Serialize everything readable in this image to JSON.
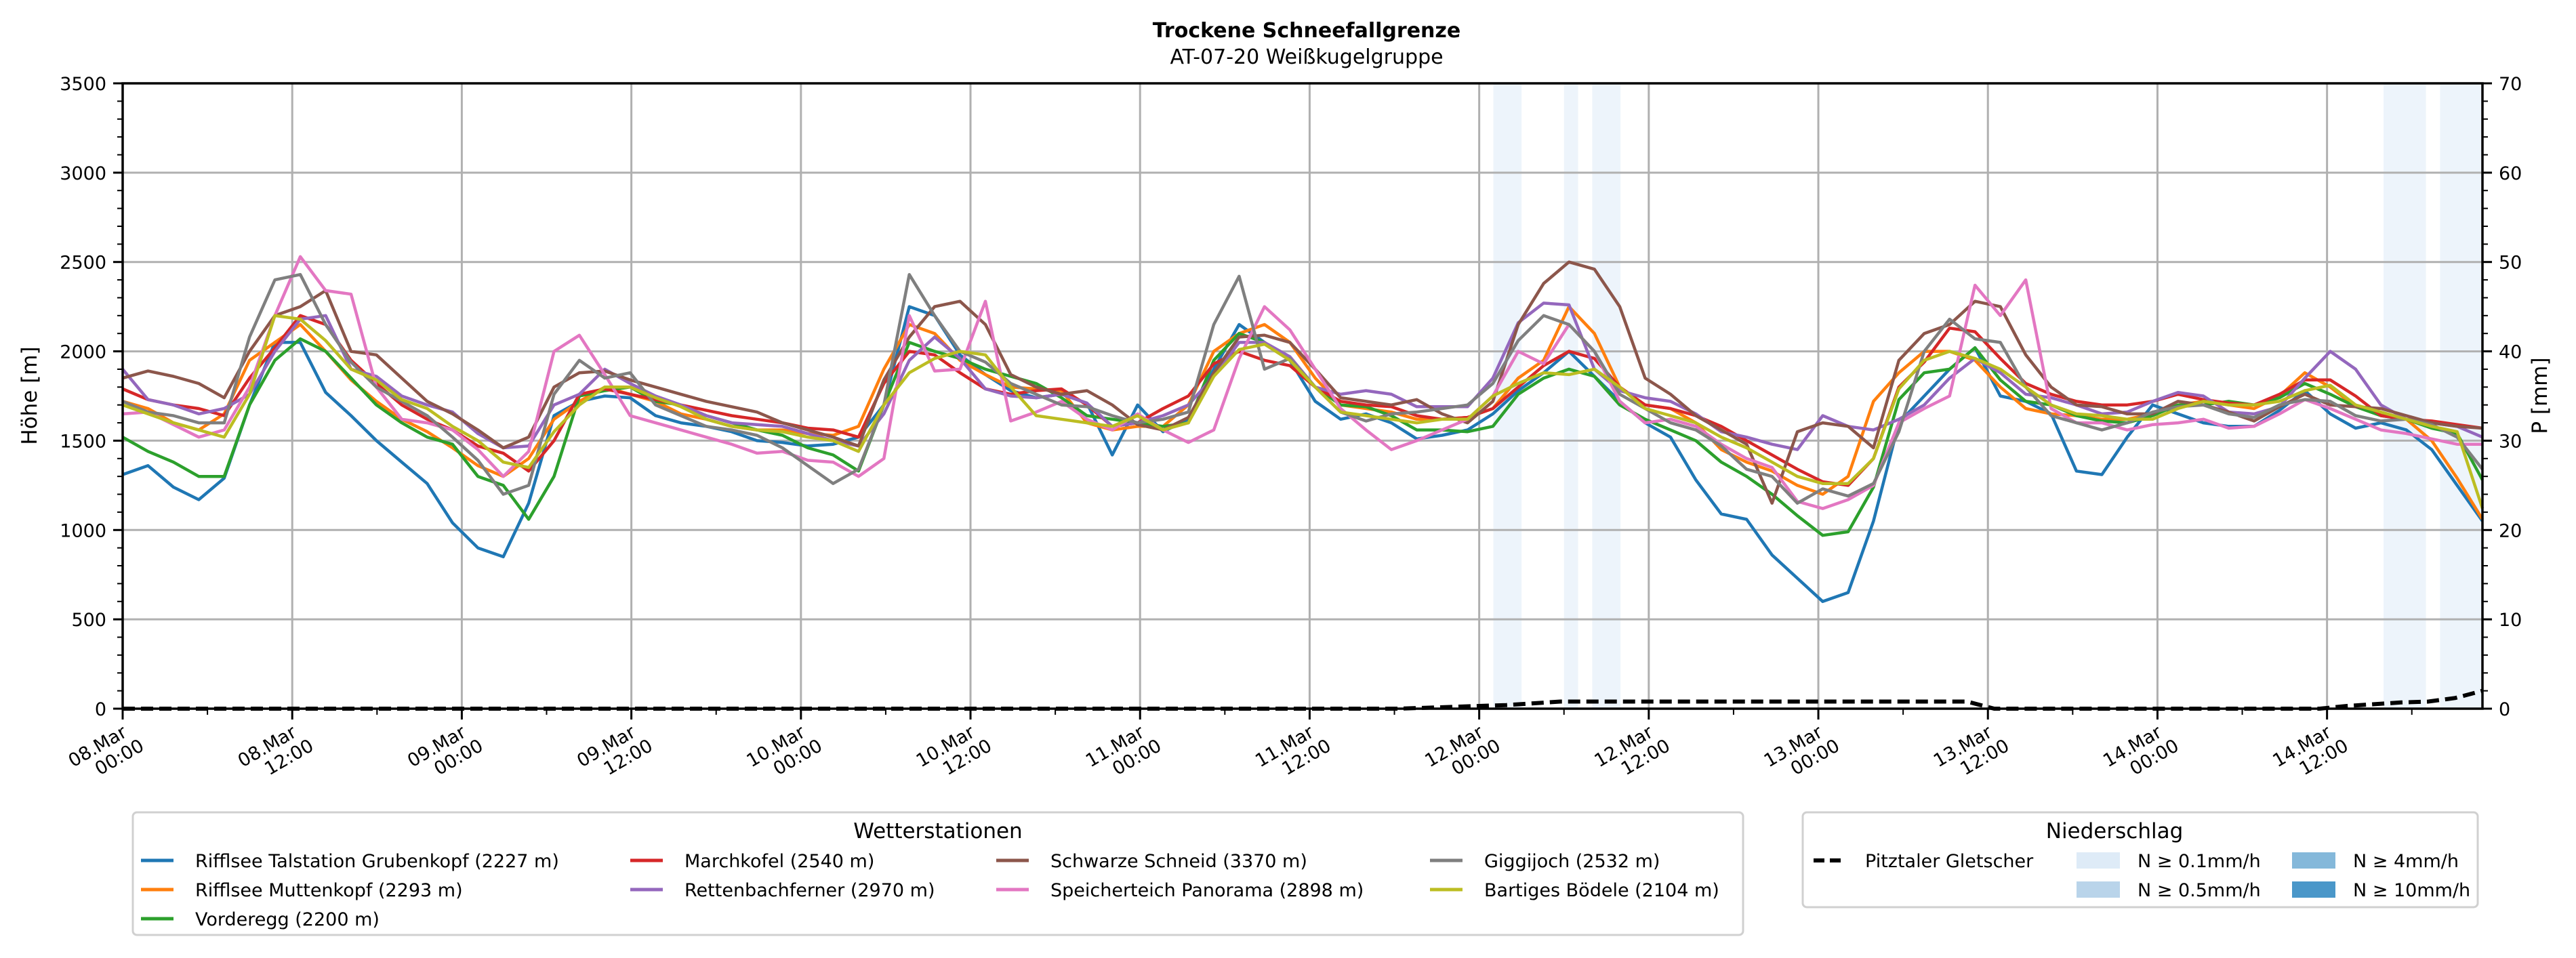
{
  "chart_data": {
    "type": "line",
    "title": "Trockene Schneefallgrenze",
    "subtitle": "AT-07-20 Weißkugelgruppe",
    "ylabel": "Höhe [m]",
    "y2label": "P [mm]",
    "ylim": [
      0,
      3500
    ],
    "y2lim": [
      0,
      70
    ],
    "yticks": [
      0,
      500,
      1000,
      1500,
      2000,
      2500,
      3000,
      3500
    ],
    "y2ticks": [
      0,
      10,
      20,
      30,
      40,
      50,
      60,
      70
    ],
    "grid": true,
    "x_start": "08.Mar 00:00",
    "x_step_hours": 2,
    "x_range_hours": [
      0,
      167
    ],
    "xticks": [
      {
        "hour": 0,
        "line1": "08.Mar",
        "line2": "00:00"
      },
      {
        "hour": 12,
        "line1": "08.Mar",
        "line2": "12:00"
      },
      {
        "hour": 24,
        "line1": "09.Mar",
        "line2": "00:00"
      },
      {
        "hour": 36,
        "line1": "09.Mar",
        "line2": "12:00"
      },
      {
        "hour": 48,
        "line1": "10.Mar",
        "line2": "00:00"
      },
      {
        "hour": 60,
        "line1": "10.Mar",
        "line2": "12:00"
      },
      {
        "hour": 72,
        "line1": "11.Mar",
        "line2": "00:00"
      },
      {
        "hour": 84,
        "line1": "11.Mar",
        "line2": "12:00"
      },
      {
        "hour": 96,
        "line1": "12.Mar",
        "line2": "00:00"
      },
      {
        "hour": 108,
        "line1": "12.Mar",
        "line2": "12:00"
      },
      {
        "hour": 120,
        "line1": "13.Mar",
        "line2": "00:00"
      },
      {
        "hour": 132,
        "line1": "13.Mar",
        "line2": "12:00"
      },
      {
        "hour": 144,
        "line1": "14.Mar",
        "line2": "00:00"
      },
      {
        "hour": 156,
        "line1": "14.Mar",
        "line2": "12:00"
      }
    ],
    "precip_bands": [
      {
        "from_hour": 97,
        "to_hour": 99,
        "class": "N ≥ 0.1mm/h"
      },
      {
        "from_hour": 102,
        "to_hour": 103,
        "class": "N ≥ 0.1mm/h"
      },
      {
        "from_hour": 104,
        "to_hour": 106,
        "class": "N ≥ 0.1mm/h"
      },
      {
        "from_hour": 160,
        "to_hour": 163,
        "class": "N ≥ 0.1mm/h"
      },
      {
        "from_hour": 164,
        "to_hour": 167,
        "class": "N ≥ 0.1mm/h"
      }
    ],
    "series": [
      {
        "name": "Rifflsee Talstation Grubenkopf (2227 m)",
        "color": "#1f77b4",
        "values": [
          1310,
          1360,
          1240,
          1170,
          1290,
          1700,
          2050,
          2050,
          1770,
          1640,
          1500,
          1380,
          1260,
          1040,
          900,
          850,
          1150,
          1640,
          1720,
          1750,
          1740,
          1640,
          1600,
          1580,
          1550,
          1500,
          1490,
          1470,
          1480,
          1520,
          1700,
          2250,
          2200,
          1980,
          1870,
          1780,
          1740,
          1760,
          1710,
          1420,
          1700,
          1550,
          1620,
          1900,
          2150,
          2050,
          1950,
          1720,
          1620,
          1650,
          1600,
          1510,
          1530,
          1560,
          1650,
          1780,
          1880,
          2000,
          1860,
          1720,
          1600,
          1520,
          1280,
          1090,
          1060,
          860,
          730,
          600,
          650,
          1050,
          1600,
          1750,
          1900,
          2020,
          1750,
          1720,
          1650,
          1330,
          1310,
          1520,
          1700,
          1650,
          1600,
          1580,
          1580,
          1670,
          1780,
          1650,
          1570,
          1600,
          1560,
          1450,
          1250,
          1050
        ]
      },
      {
        "name": "Rifflsee Muttenkopf (2293 m)",
        "color": "#ff7f0e",
        "values": [
          1720,
          1680,
          1600,
          1560,
          1650,
          1950,
          2050,
          2150,
          2000,
          1840,
          1720,
          1620,
          1550,
          1460,
          1360,
          1300,
          1400,
          1620,
          1720,
          1800,
          1760,
          1720,
          1650,
          1620,
          1580,
          1560,
          1560,
          1540,
          1530,
          1580,
          1900,
          2150,
          2100,
          1950,
          1870,
          1800,
          1790,
          1780,
          1600,
          1560,
          1580,
          1580,
          1700,
          2000,
          2100,
          2150,
          2050,
          1850,
          1700,
          1680,
          1660,
          1620,
          1620,
          1630,
          1680,
          1850,
          1950,
          2250,
          2100,
          1800,
          1700,
          1680,
          1600,
          1450,
          1380,
          1330,
          1250,
          1200,
          1300,
          1720,
          1880,
          2000,
          2000,
          1950,
          1800,
          1680,
          1650,
          1640,
          1620,
          1620,
          1650,
          1700,
          1720,
          1700,
          1680,
          1750,
          1880,
          1800,
          1690,
          1650,
          1620,
          1500,
          1290,
          1060
        ]
      },
      {
        "name": "Vorderegg (2200 m)",
        "color": "#2ca02c",
        "values": [
          1520,
          1440,
          1380,
          1300,
          1300,
          1700,
          1950,
          2070,
          2000,
          1850,
          1700,
          1600,
          1520,
          1480,
          1300,
          1250,
          1060,
          1300,
          1750,
          1780,
          1800,
          1720,
          1700,
          1640,
          1600,
          1560,
          1530,
          1460,
          1420,
          1330,
          1700,
          2050,
          2000,
          1960,
          1900,
          1860,
          1820,
          1740,
          1640,
          1620,
          1600,
          1580,
          1600,
          1950,
          2100,
          2050,
          1950,
          1800,
          1700,
          1690,
          1640,
          1560,
          1560,
          1550,
          1580,
          1760,
          1850,
          1900,
          1860,
          1700,
          1620,
          1560,
          1500,
          1380,
          1300,
          1200,
          1080,
          970,
          990,
          1240,
          1730,
          1880,
          1900,
          2020,
          1840,
          1720,
          1700,
          1640,
          1610,
          1600,
          1640,
          1700,
          1700,
          1720,
          1700,
          1740,
          1820,
          1760,
          1690,
          1640,
          1620,
          1570,
          1540,
          1280
        ]
      },
      {
        "name": "Marchkofel (2540 m)",
        "color": "#d62728",
        "values": [
          1790,
          1730,
          1700,
          1680,
          1640,
          1850,
          2020,
          2200,
          2150,
          1950,
          1820,
          1700,
          1620,
          1560,
          1470,
          1430,
          1330,
          1500,
          1760,
          1790,
          1760,
          1730,
          1700,
          1670,
          1640,
          1620,
          1600,
          1570,
          1560,
          1520,
          1820,
          2000,
          1980,
          1880,
          1790,
          1760,
          1780,
          1790,
          1700,
          1580,
          1600,
          1680,
          1750,
          1930,
          2000,
          1950,
          1920,
          1800,
          1720,
          1700,
          1690,
          1640,
          1620,
          1630,
          1680,
          1800,
          1920,
          2000,
          1960,
          1800,
          1700,
          1680,
          1640,
          1580,
          1500,
          1420,
          1340,
          1270,
          1250,
          1400,
          1800,
          1940,
          2130,
          2110,
          1960,
          1820,
          1760,
          1720,
          1700,
          1700,
          1720,
          1760,
          1730,
          1710,
          1700,
          1760,
          1840,
          1840,
          1750,
          1640,
          1620,
          1610,
          1590,
          1570
        ]
      },
      {
        "name": "Rettenbachferner (2970 m)",
        "color": "#9467bd",
        "values": [
          1900,
          1730,
          1700,
          1650,
          1680,
          1760,
          2000,
          2180,
          2200,
          1900,
          1860,
          1750,
          1700,
          1660,
          1540,
          1460,
          1470,
          1700,
          1760,
          1900,
          1820,
          1750,
          1700,
          1640,
          1600,
          1590,
          1580,
          1540,
          1500,
          1470,
          1650,
          1950,
          2080,
          1960,
          1790,
          1750,
          1740,
          1760,
          1710,
          1580,
          1600,
          1640,
          1700,
          1860,
          2050,
          2050,
          1970,
          1800,
          1760,
          1780,
          1760,
          1690,
          1690,
          1690,
          1850,
          2160,
          2270,
          2260,
          1900,
          1780,
          1740,
          1720,
          1650,
          1550,
          1520,
          1480,
          1450,
          1640,
          1580,
          1560,
          1620,
          1700,
          1850,
          1960,
          1880,
          1760,
          1740,
          1700,
          1650,
          1660,
          1720,
          1770,
          1750,
          1660,
          1650,
          1690,
          1850,
          2000,
          1900,
          1700,
          1620,
          1600,
          1580,
          1520
        ]
      },
      {
        "name": "Schwarze Schneid (3370 m)",
        "color": "#8c564b",
        "values": [
          1850,
          1890,
          1860,
          1820,
          1740,
          2000,
          2200,
          2250,
          2340,
          2000,
          1980,
          1850,
          1720,
          1650,
          1560,
          1460,
          1520,
          1800,
          1880,
          1890,
          1840,
          1800,
          1760,
          1720,
          1690,
          1660,
          1600,
          1560,
          1520,
          1470,
          1840,
          2080,
          2250,
          2280,
          2150,
          1870,
          1800,
          1760,
          1780,
          1700,
          1590,
          1560,
          1630,
          1880,
          2080,
          2090,
          2050,
          1900,
          1740,
          1720,
          1700,
          1730,
          1650,
          1600,
          1720,
          2150,
          2380,
          2500,
          2460,
          2250,
          1850,
          1760,
          1640,
          1560,
          1480,
          1150,
          1550,
          1600,
          1580,
          1460,
          1950,
          2100,
          2150,
          2280,
          2250,
          1980,
          1800,
          1700,
          1690,
          1650,
          1650,
          1720,
          1700,
          1660,
          1610,
          1690,
          1760,
          1700,
          1690,
          1680,
          1640,
          1600,
          1580,
          1570
        ]
      },
      {
        "name": "Speicherteich Panorama (2898 m)",
        "color": "#e377c2",
        "values": [
          1650,
          1660,
          1590,
          1520,
          1560,
          1800,
          2200,
          2530,
          2340,
          2320,
          1800,
          1620,
          1600,
          1560,
          1450,
          1300,
          1440,
          2000,
          2090,
          1870,
          1640,
          1600,
          1560,
          1520,
          1480,
          1430,
          1440,
          1390,
          1380,
          1300,
          1400,
          2200,
          1890,
          1900,
          2280,
          1610,
          1660,
          1720,
          1620,
          1560,
          1650,
          1560,
          1490,
          1560,
          1960,
          2250,
          2120,
          1900,
          1680,
          1560,
          1450,
          1500,
          1560,
          1620,
          1750,
          2000,
          1930,
          2150,
          2000,
          1720,
          1600,
          1620,
          1580,
          1480,
          1400,
          1350,
          1160,
          1120,
          1170,
          1250,
          1600,
          1680,
          1750,
          2370,
          2200,
          2400,
          1680,
          1600,
          1600,
          1560,
          1590,
          1600,
          1620,
          1570,
          1580,
          1650,
          1730,
          1680,
          1620,
          1560,
          1540,
          1510,
          1480,
          1480
        ]
      },
      {
        "name": "Giggijoch (2532 m)",
        "color": "#7f7f7f",
        "values": [
          1720,
          1660,
          1640,
          1600,
          1600,
          2080,
          2400,
          2430,
          2150,
          1940,
          1800,
          1720,
          1640,
          1520,
          1390,
          1200,
          1250,
          1760,
          1950,
          1850,
          1880,
          1700,
          1640,
          1580,
          1560,
          1530,
          1460,
          1360,
          1260,
          1340,
          1700,
          2430,
          2200,
          2000,
          1940,
          1820,
          1760,
          1700,
          1690,
          1640,
          1600,
          1620,
          1660,
          2150,
          2420,
          1900,
          1960,
          1800,
          1660,
          1610,
          1650,
          1660,
          1680,
          1700,
          1820,
          2060,
          2200,
          2150,
          2000,
          1760,
          1680,
          1600,
          1560,
          1470,
          1340,
          1300,
          1150,
          1230,
          1190,
          1260,
          1550,
          2000,
          2180,
          2070,
          2050,
          1800,
          1640,
          1600,
          1560,
          1600,
          1660,
          1690,
          1700,
          1650,
          1630,
          1700,
          1730,
          1720,
          1640,
          1610,
          1620,
          1590,
          1520,
          1340
        ]
      },
      {
        "name": "Bartiges Bödele (2104 m)",
        "color": "#bcbd22",
        "values": [
          1700,
          1650,
          1600,
          1560,
          1520,
          1760,
          2200,
          2180,
          2060,
          1900,
          1840,
          1730,
          1680,
          1580,
          1500,
          1380,
          1350,
          1550,
          1700,
          1800,
          1800,
          1740,
          1690,
          1620,
          1580,
          1560,
          1550,
          1520,
          1500,
          1440,
          1700,
          1880,
          1960,
          2000,
          1980,
          1800,
          1640,
          1620,
          1600,
          1580,
          1640,
          1560,
          1600,
          1860,
          2010,
          2040,
          1950,
          1800,
          1660,
          1640,
          1620,
          1600,
          1620,
          1620,
          1750,
          1820,
          1880,
          1870,
          1900,
          1800,
          1680,
          1640,
          1600,
          1520,
          1460,
          1380,
          1300,
          1260,
          1260,
          1400,
          1790,
          1950,
          2000,
          1960,
          1900,
          1800,
          1700,
          1650,
          1640,
          1620,
          1620,
          1680,
          1720,
          1700,
          1700,
          1720,
          1780,
          1810,
          1700,
          1660,
          1620,
          1580,
          1550,
          1120
        ]
      }
    ],
    "precipitation_series": {
      "name": "Pitztaler Gletscher",
      "color": "#000000",
      "axis": "y2",
      "values_mm": [
        0,
        0,
        0,
        0,
        0,
        0,
        0,
        0,
        0,
        0,
        0,
        0,
        0,
        0,
        0,
        0,
        0,
        0,
        0,
        0,
        0,
        0,
        0,
        0,
        0,
        0,
        0,
        0,
        0,
        0,
        0,
        0,
        0,
        0,
        0,
        0,
        0,
        0,
        0,
        0,
        0,
        0,
        0,
        0,
        0,
        0,
        0,
        0,
        0.1,
        0.2,
        0.3,
        0.4,
        0.6,
        0.8,
        0.8,
        0.8,
        0.8,
        0.8,
        0.8,
        0.8,
        0.8,
        0.8,
        0.8,
        0.8,
        0.8,
        0.8,
        0.8,
        0.8,
        0.8,
        0,
        0,
        0,
        0,
        0,
        0,
        0,
        0,
        0,
        0,
        0,
        0,
        0,
        0.3,
        0.5,
        0.7,
        0.8,
        1.2,
        2.0
      ],
      "offset_index": 0
    }
  },
  "legend_stations": {
    "title": "Wetterstationen",
    "placement": "bottom-left"
  },
  "legend_precip": {
    "title": "Niederschlag",
    "placement": "bottom-right",
    "line_label": "Pitztaler Gletscher",
    "classes": [
      {
        "label": "N ≥ 0.1mm/h",
        "color": "#deebf7"
      },
      {
        "label": "N ≥ 0.5mm/h",
        "color": "#b9d4ea"
      },
      {
        "label": "N ≥ 4mm/h",
        "color": "#84b8da"
      },
      {
        "label": "N ≥ 10mm/h",
        "color": "#4a97c9"
      }
    ]
  }
}
